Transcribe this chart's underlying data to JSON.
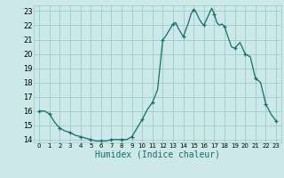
{
  "title": "",
  "xlabel": "Humidex (Indice chaleur)",
  "ylabel": "",
  "bg_color": "#cce8e8",
  "grid_color": "#99cccc",
  "line_color": "#1a6b6b",
  "marker_color": "#1a6b6b",
  "xlim": [
    -0.5,
    23.5
  ],
  "ylim": [
    13.8,
    23.4
  ],
  "yticks": [
    14,
    15,
    16,
    17,
    18,
    19,
    20,
    21,
    22,
    23
  ],
  "xticks": [
    0,
    1,
    2,
    3,
    4,
    5,
    6,
    7,
    8,
    9,
    10,
    11,
    12,
    13,
    14,
    15,
    16,
    17,
    18,
    19,
    20,
    21,
    22,
    23
  ],
  "x": [
    0,
    0.5,
    1,
    1.5,
    2,
    2.5,
    3,
    3.5,
    4,
    4.5,
    5,
    5.5,
    6,
    6.5,
    7,
    7.5,
    8,
    8.5,
    9,
    9.5,
    10,
    10.5,
    11,
    11.5,
    12,
    12.25,
    12.5,
    12.75,
    13,
    13.25,
    13.5,
    13.75,
    14,
    14.25,
    14.5,
    14.75,
    15,
    15.25,
    15.5,
    15.75,
    16,
    16.25,
    16.5,
    16.75,
    17,
    17.25,
    17.5,
    17.75,
    18,
    18.33,
    18.67,
    19,
    19.5,
    20,
    20.5,
    21,
    21.5,
    22,
    22.5,
    23
  ],
  "y": [
    16.0,
    16.0,
    15.8,
    15.2,
    14.8,
    14.6,
    14.5,
    14.3,
    14.2,
    14.1,
    14.0,
    13.9,
    13.9,
    13.9,
    14.0,
    14.0,
    14.0,
    14.0,
    14.2,
    14.8,
    15.4,
    16.1,
    16.6,
    17.5,
    21.0,
    21.2,
    21.5,
    21.8,
    22.1,
    22.2,
    21.8,
    21.5,
    21.2,
    21.7,
    22.2,
    22.8,
    23.1,
    22.9,
    22.5,
    22.2,
    22.0,
    22.4,
    22.8,
    23.2,
    22.8,
    22.2,
    22.0,
    22.1,
    21.9,
    21.2,
    20.5,
    20.4,
    20.8,
    20.0,
    19.8,
    18.3,
    18.0,
    16.5,
    15.8,
    15.3
  ],
  "marker_x": [
    0,
    1,
    2,
    3,
    4,
    5,
    6,
    7,
    8,
    9,
    10,
    11,
    12,
    13,
    14,
    15,
    16,
    17,
    18,
    19,
    20,
    21,
    22,
    23
  ],
  "marker_y": [
    16.0,
    15.8,
    14.8,
    14.5,
    14.2,
    14.0,
    13.9,
    14.0,
    14.0,
    14.2,
    15.4,
    16.6,
    21.0,
    22.1,
    21.2,
    23.1,
    22.0,
    22.8,
    21.9,
    20.4,
    20.0,
    18.3,
    16.5,
    15.3
  ]
}
